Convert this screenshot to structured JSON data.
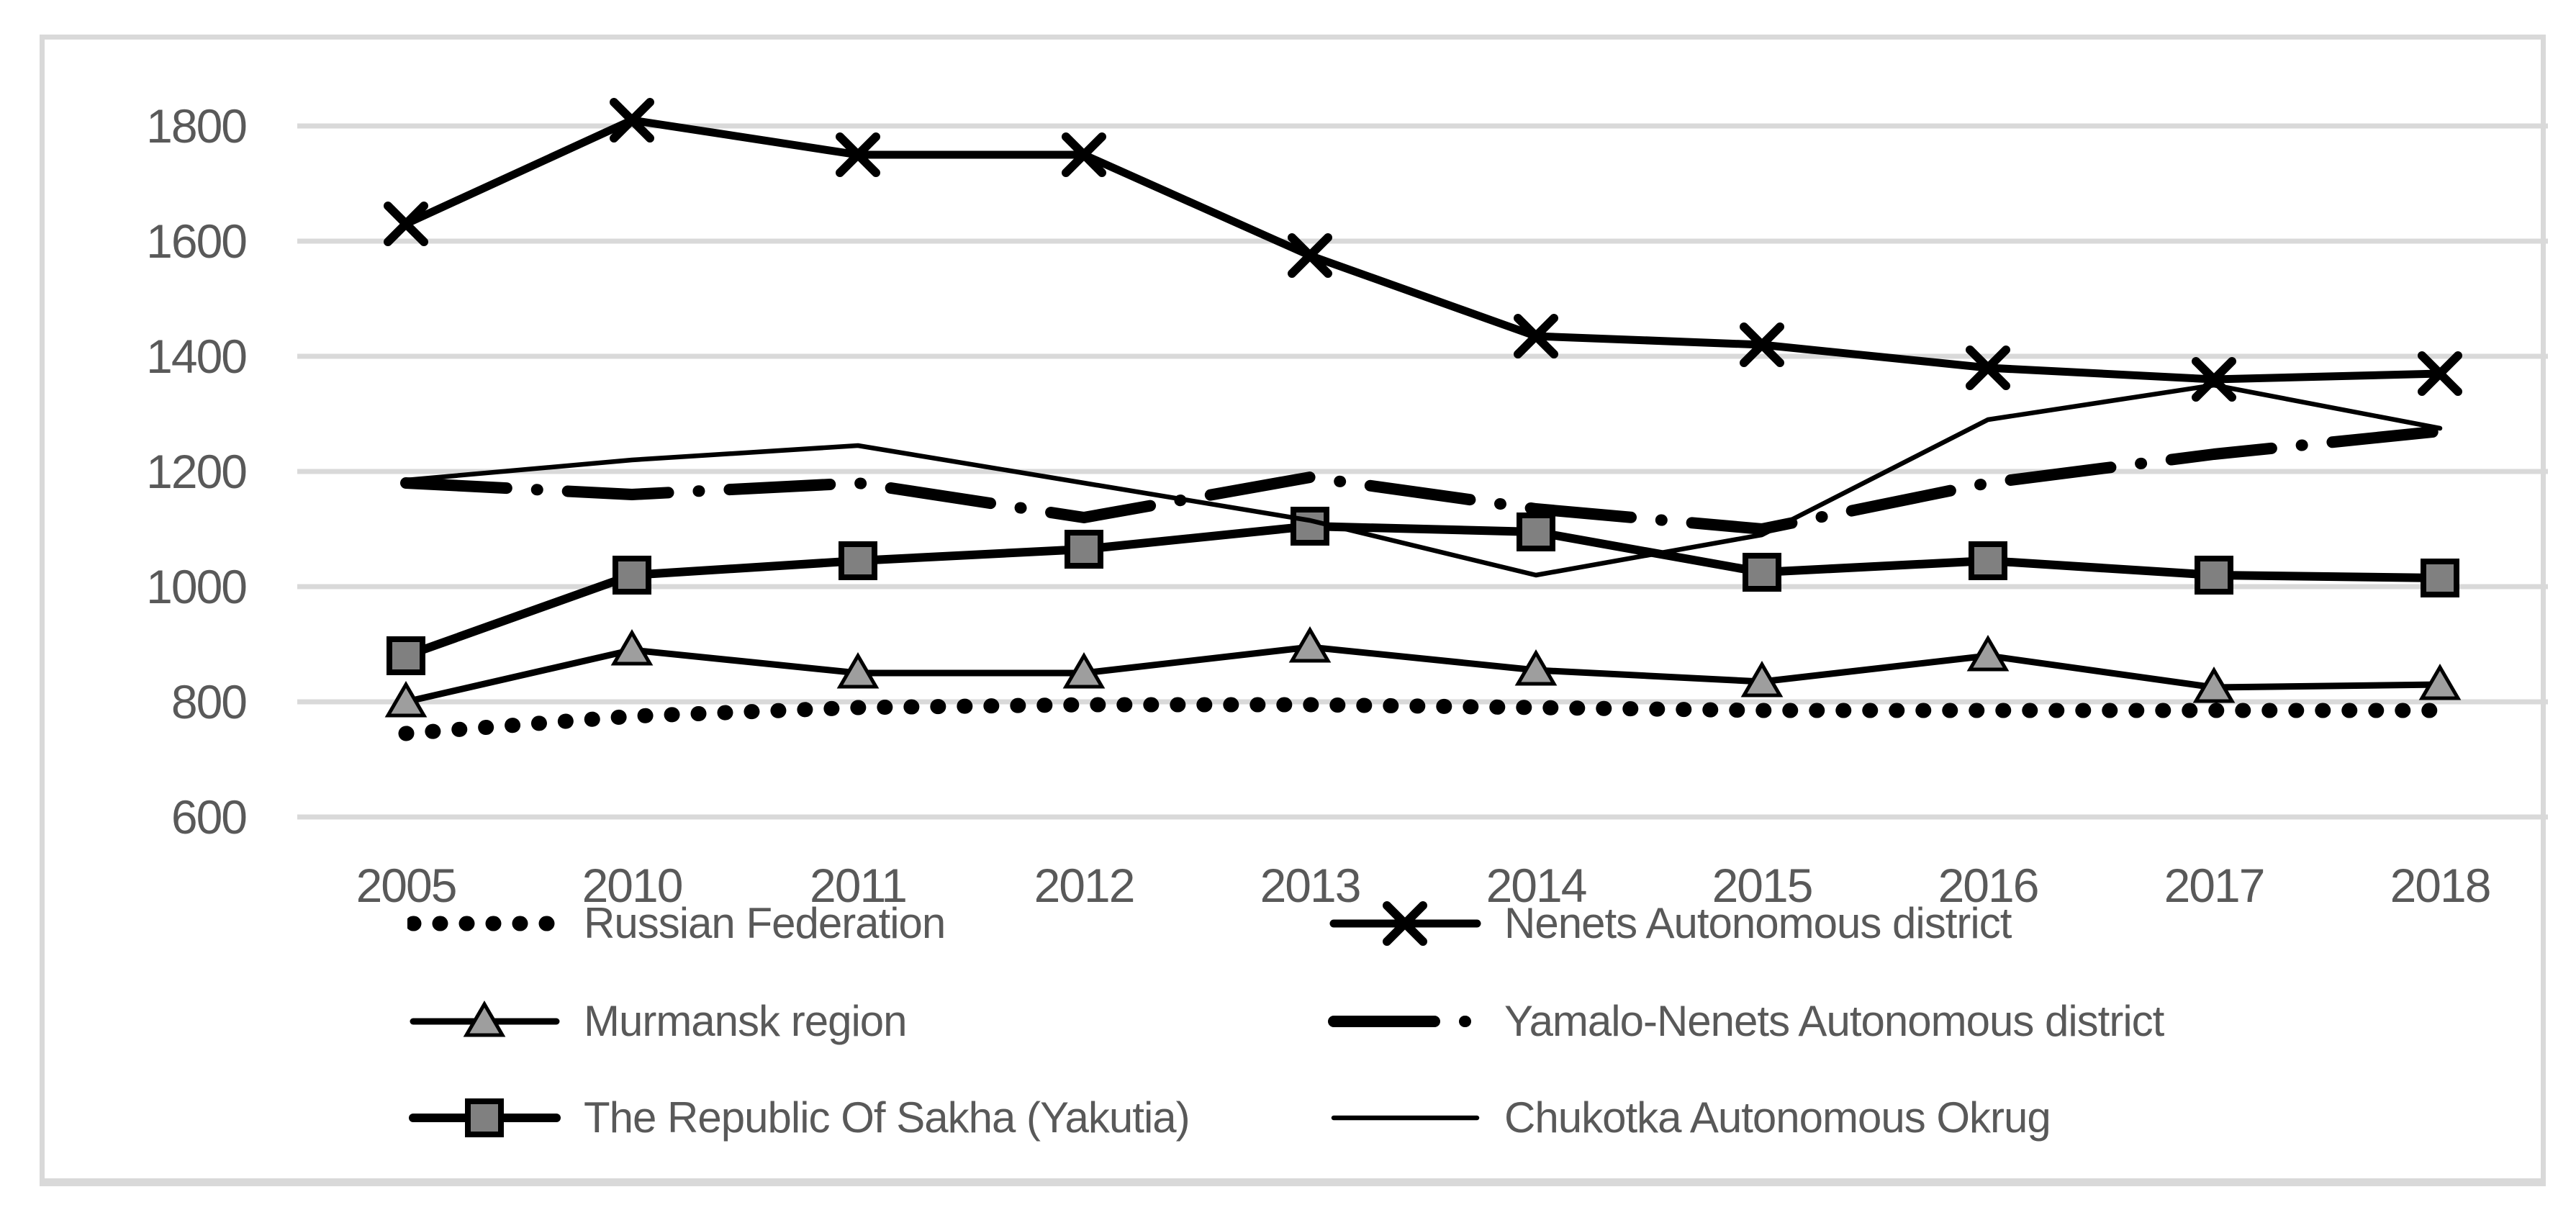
{
  "colors": {
    "series_line": "#000000",
    "grid": "#d9d9d9",
    "frame": "#d9d9d9",
    "text": "#595959",
    "triangle_fill": "#9e9e9e",
    "square_fill": "#808080"
  },
  "chart_data": {
    "type": "line",
    "title": "",
    "xlabel": "",
    "ylabel": "",
    "grid": true,
    "legend_position": "bottom",
    "categories": [
      "2005",
      "2010",
      "2011",
      "2012",
      "2013",
      "2014",
      "2015",
      "2016",
      "2017",
      "2018"
    ],
    "y_axis": {
      "min": 600,
      "max": 1800,
      "tick_step": 200,
      "ticks": [
        600,
        800,
        1000,
        1200,
        1400,
        1600,
        1800
      ]
    },
    "series": [
      {
        "key": "russian-federation",
        "name": "Russian Federation",
        "style": "dotted",
        "marker": "none",
        "values": [
          745,
          775,
          790,
          795,
          795,
          790,
          785,
          785,
          785,
          785
        ]
      },
      {
        "key": "nenets",
        "name": "Nenets Autonomous district",
        "style": "x",
        "marker": "x",
        "values": [
          1630,
          1810,
          1750,
          1750,
          1575,
          1435,
          1420,
          1380,
          1360,
          1370
        ]
      },
      {
        "key": "murmansk",
        "name": "Murmansk region",
        "style": "triangle",
        "marker": "triangle",
        "values": [
          800,
          890,
          850,
          850,
          895,
          855,
          835,
          880,
          825,
          830
        ]
      },
      {
        "key": "yamalo-nenets",
        "name": "Yamalo-Nenets Autonomous district",
        "style": "dashdot",
        "marker": "none",
        "values": [
          1180,
          1160,
          1180,
          1120,
          1190,
          1135,
          1100,
          1180,
          1230,
          1270
        ]
      },
      {
        "key": "sakha",
        "name": "The Republic Of Sakha (Yakutia)",
        "style": "square",
        "marker": "square",
        "values": [
          880,
          1020,
          1045,
          1065,
          1105,
          1095,
          1025,
          1045,
          1020,
          1015
        ]
      },
      {
        "key": "chukotka",
        "name": "Chukotka Autonomous Okrug",
        "style": "thin",
        "marker": "none",
        "values": [
          1185,
          1220,
          1245,
          1180,
          1115,
          1020,
          1090,
          1290,
          1350,
          1275
        ]
      }
    ]
  }
}
